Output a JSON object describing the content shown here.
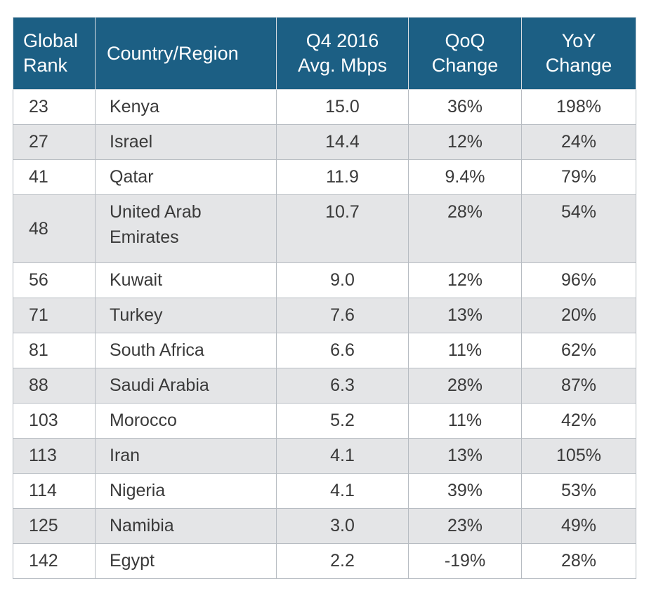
{
  "headers": {
    "rank": "Global\nRank",
    "country": "Country/Region",
    "mbps": "Q4 2016\nAvg. Mbps",
    "qoq": "QoQ\nChange",
    "yoy": "YoY\nChange"
  },
  "rows": [
    {
      "rank": "23",
      "country": "Kenya",
      "mbps": "15.0",
      "qoq": "36%",
      "yoy": "198%"
    },
    {
      "rank": "27",
      "country": "Israel",
      "mbps": "14.4",
      "qoq": "12%",
      "yoy": "24%"
    },
    {
      "rank": "41",
      "country": "Qatar",
      "mbps": "11.9",
      "qoq": "9.4%",
      "yoy": "79%"
    },
    {
      "rank": "48",
      "country": "United Arab Emirates",
      "mbps": "10.7",
      "qoq": "28%",
      "yoy": "54%"
    },
    {
      "rank": "56",
      "country": "Kuwait",
      "mbps": "9.0",
      "qoq": "12%",
      "yoy": "96%"
    },
    {
      "rank": "71",
      "country": "Turkey",
      "mbps": "7.6",
      "qoq": "13%",
      "yoy": "20%"
    },
    {
      "rank": "81",
      "country": "South Africa",
      "mbps": "6.6",
      "qoq": "11%",
      "yoy": "62%"
    },
    {
      "rank": "88",
      "country": "Saudi Arabia",
      "mbps": "6.3",
      "qoq": "28%",
      "yoy": "87%"
    },
    {
      "rank": "103",
      "country": "Morocco",
      "mbps": "5.2",
      "qoq": "11%",
      "yoy": "42%"
    },
    {
      "rank": "113",
      "country": "Iran",
      "mbps": "4.1",
      "qoq": "13%",
      "yoy": "105%"
    },
    {
      "rank": "114",
      "country": "Nigeria",
      "mbps": "4.1",
      "qoq": "39%",
      "yoy": "53%"
    },
    {
      "rank": "125",
      "country": "Namibia",
      "mbps": "3.0",
      "qoq": "23%",
      "yoy": "49%"
    },
    {
      "rank": "142",
      "country": "Egypt",
      "mbps": "2.2",
      "qoq": "-19%",
      "yoy": "28%"
    }
  ]
}
